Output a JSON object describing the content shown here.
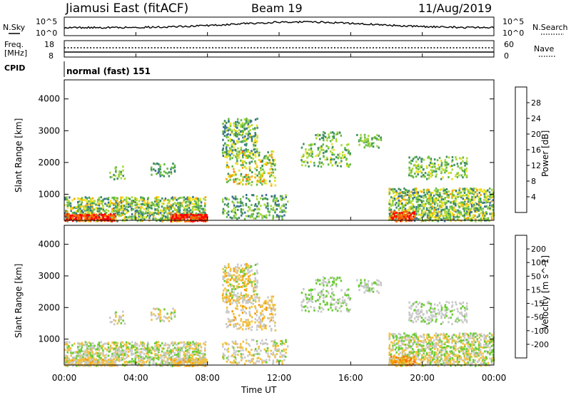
{
  "header": {
    "station": "Jiamusi East (fitACF)",
    "beam": "Beam 19",
    "date": "11/Aug/2019"
  },
  "noise_panel": {
    "left_label": "N.Sky",
    "right_label": "N.Search",
    "left_ticks": [
      "10^5",
      "10^0"
    ],
    "right_ticks": [
      "10^5",
      "10^0"
    ]
  },
  "freq_panel": {
    "left_label_1": "Freq.",
    "left_label_2": "[MHz]",
    "right_label": "Nave",
    "left_ticks": [
      "18",
      "8"
    ],
    "right_ticks": [
      "60",
      "0"
    ]
  },
  "cpid": {
    "label": "CPID",
    "value": "normal (fast) 151"
  },
  "chart_data": [
    {
      "type": "heatmap",
      "quantity": "Power",
      "ylabel": "Slant Range [km]",
      "ylim": [
        180,
        4600
      ],
      "yticks": [
        "4000",
        "3000",
        "2000",
        "1000"
      ],
      "colorbar_label": "Power [dB]",
      "colorbar_ticks": [
        "28",
        "24",
        "20",
        "16",
        "12",
        "8",
        "4"
      ],
      "colorscale": [
        "#0a16ff",
        "#2050c0",
        "#3a7090",
        "#3f9060",
        "#66bb44",
        "#a7d83a",
        "#f0e020",
        "#f6a800",
        "#ff6a00",
        "#ff0000"
      ],
      "xlim_hours": [
        0,
        24
      ]
    },
    {
      "type": "heatmap",
      "quantity": "Velocity",
      "ylabel": "Slant Range [km]",
      "ylim": [
        180,
        4600
      ],
      "yticks": [
        "4000",
        "3000",
        "2000",
        "1000"
      ],
      "colorbar_label": "Velocity [m s^-1]",
      "colorbar_ticks": [
        "200",
        "100",
        "50",
        "15",
        "-15",
        "-50",
        "-100",
        "-200"
      ],
      "colorscale": [
        "#1c2fc0",
        "#2a6a9a",
        "#3c9a4e",
        "#6acc33",
        "#c8c8c8",
        "#f2c040",
        "#f59a00",
        "#ff6a00",
        "#ff0000"
      ],
      "xlim_hours": [
        0,
        24
      ]
    }
  ],
  "time_axis": {
    "label": "Time UT",
    "ticks": [
      "00:00",
      "04:00",
      "08:00",
      "12:00",
      "16:00",
      "20:00",
      "00:00"
    ]
  }
}
